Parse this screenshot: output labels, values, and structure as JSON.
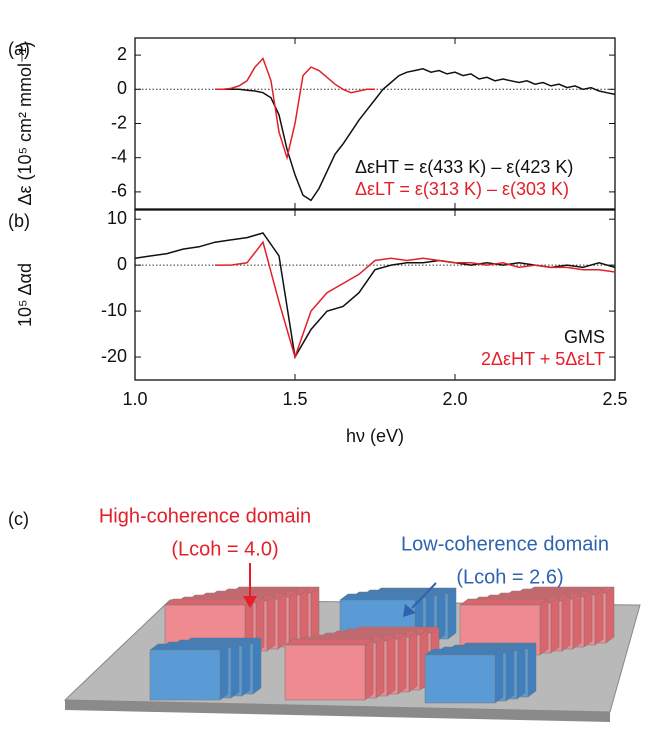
{
  "chart_data": [
    {
      "type": "line",
      "panel_label": "(a)",
      "y_label": "Δε (10⁵ cm² mmol⁻¹)",
      "xlim": [
        1.0,
        2.5
      ],
      "xticks": [
        1,
        1.5,
        2,
        2.5
      ],
      "ylim": [
        -7,
        3
      ],
      "yticks": [
        -6,
        -4,
        -2,
        0,
        2
      ],
      "zero_line": true,
      "series": [
        {
          "name": "ΔεHT = ε(433 K) – ε(423 K)",
          "color": "#111111",
          "x": [
            1.25,
            1.275,
            1.3,
            1.325,
            1.35,
            1.375,
            1.4,
            1.425,
            1.45,
            1.475,
            1.5,
            1.525,
            1.55,
            1.575,
            1.6,
            1.625,
            1.65,
            1.675,
            1.7,
            1.725,
            1.75,
            1.775,
            1.8,
            1.825,
            1.85,
            1.875,
            1.9,
            1.925,
            1.95,
            1.975,
            2.0,
            2.025,
            2.05,
            2.075,
            2.1,
            2.125,
            2.15,
            2.175,
            2.2,
            2.225,
            2.25,
            2.275,
            2.3,
            2.325,
            2.35,
            2.375,
            2.4,
            2.425,
            2.45,
            2.475,
            2.5
          ],
          "values": [
            0,
            0,
            0,
            0,
            -0.05,
            -0.1,
            -0.2,
            -0.5,
            -1.5,
            -3.5,
            -5.0,
            -6.2,
            -6.5,
            -5.8,
            -4.8,
            -3.8,
            -3.2,
            -2.5,
            -1.8,
            -1.2,
            -0.6,
            0.0,
            0.4,
            0.8,
            1.0,
            1.1,
            1.2,
            1.0,
            1.1,
            0.9,
            1.0,
            0.8,
            0.9,
            0.6,
            0.7,
            0.5,
            0.6,
            0.5,
            0.4,
            0.5,
            0.3,
            0.4,
            0.2,
            0.3,
            0.1,
            0.2,
            0.0,
            0.1,
            -0.1,
            -0.2,
            -0.3
          ]
        },
        {
          "name": "ΔεLT = ε(313 K) – ε(303 K)",
          "color": "#e3202a",
          "x": [
            1.25,
            1.275,
            1.3,
            1.325,
            1.35,
            1.375,
            1.4,
            1.425,
            1.45,
            1.475,
            1.5,
            1.525,
            1.55,
            1.575,
            1.6,
            1.625,
            1.65,
            1.675,
            1.7,
            1.725,
            1.75
          ],
          "values": [
            0,
            0,
            0.05,
            0.2,
            0.5,
            1.3,
            1.8,
            0.5,
            -2.5,
            -4.0,
            -2.0,
            0.8,
            1.3,
            1.1,
            0.7,
            0.3,
            0.0,
            -0.2,
            -0.1,
            0,
            0
          ]
        }
      ]
    },
    {
      "type": "line",
      "panel_label": "(b)",
      "y_label": "10⁵ Δαd",
      "x_label": "hν (eV)",
      "xlim": [
        1.0,
        2.5
      ],
      "xticks": [
        {
          "value": 1.0,
          "label": "1.0"
        },
        {
          "value": 1.5,
          "label": "1.5"
        },
        {
          "value": 2.0,
          "label": "2.0"
        },
        {
          "value": 2.5,
          "label": "2.5"
        }
      ],
      "ylim": [
        -25,
        12
      ],
      "yticks": [
        -20,
        -10,
        0,
        10
      ],
      "zero_line": true,
      "series": [
        {
          "name": "GMS",
          "color": "#111111",
          "x": [
            1.0,
            1.05,
            1.1,
            1.15,
            1.2,
            1.25,
            1.3,
            1.35,
            1.4,
            1.45,
            1.5,
            1.55,
            1.6,
            1.65,
            1.7,
            1.75,
            1.8,
            1.85,
            1.9,
            1.95,
            2.0,
            2.05,
            2.1,
            2.15,
            2.2,
            2.25,
            2.3,
            2.35,
            2.4,
            2.45,
            2.5
          ],
          "values": [
            1.5,
            2,
            2.5,
            3.5,
            4,
            5,
            5.5,
            6,
            7,
            2,
            -20,
            -14,
            -10,
            -9,
            -6,
            -1,
            0,
            0.5,
            0.5,
            1,
            0.5,
            0,
            0.5,
            0,
            0.5,
            0,
            -0.5,
            0,
            -0.5,
            0.5,
            -0.5
          ]
        },
        {
          "name": "2ΔεHT + 5ΔεLT",
          "color": "#e3202a",
          "x": [
            1.25,
            1.3,
            1.35,
            1.4,
            1.45,
            1.5,
            1.55,
            1.6,
            1.65,
            1.7,
            1.75,
            1.8,
            1.85,
            1.9,
            1.95,
            2.0,
            2.05,
            2.1,
            2.15,
            2.2,
            2.25,
            2.3,
            2.35,
            2.4,
            2.45,
            2.5
          ],
          "values": [
            0,
            0,
            0.5,
            5,
            -8,
            -20,
            -10,
            -6,
            -4,
            -2,
            1,
            1.5,
            1,
            1.5,
            1,
            0.5,
            0.5,
            0,
            0.5,
            -0.5,
            0,
            -0.5,
            -0.5,
            -1,
            -1,
            -1.5
          ]
        }
      ]
    }
  ],
  "diagram": {
    "panel_label": "(c)",
    "high": {
      "title": "High-coherence domain",
      "label": "(Lcoh = 4.0)"
    },
    "low": {
      "title": "Low-coherence domain",
      "label": "(Lcoh = 2.6)"
    }
  }
}
